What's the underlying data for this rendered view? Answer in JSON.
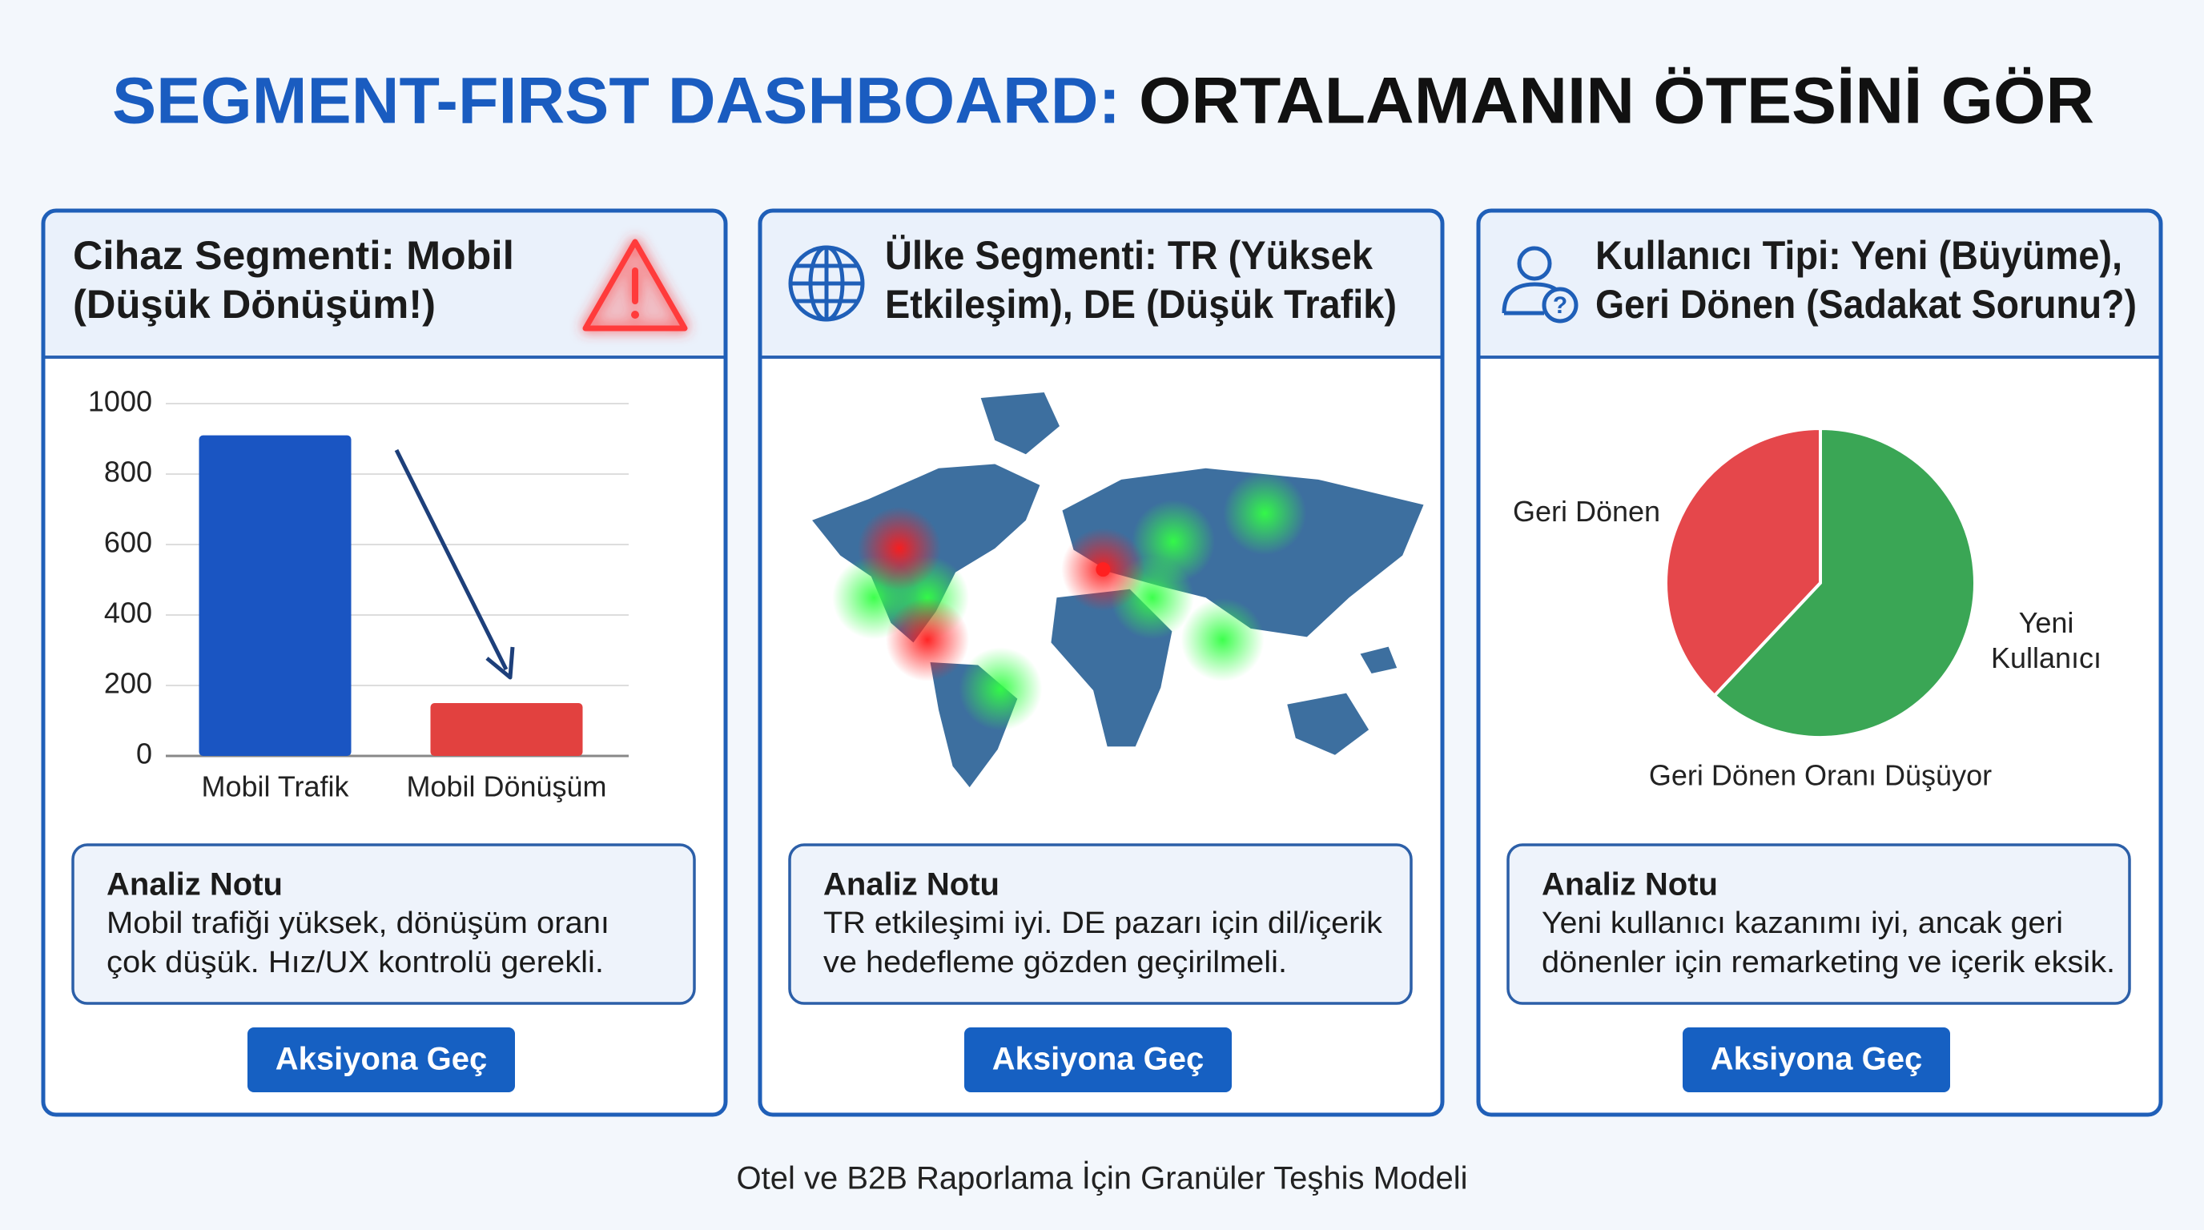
{
  "title": {
    "lead": "SEGMENT-FIRST DASHBOARD:",
    "rest": "ORTALAMANIN ÖTESİNİ GÖR"
  },
  "panels": [
    {
      "title_lines": [
        "Cihaz Segmenti: Mobil",
        "(Düşük Dönüşüm!)"
      ],
      "note": {
        "heading": "Analiz Notu",
        "lines": [
          "Mobil trafiği yüksek, dönüşüm oranı",
          "çok düşük. Hız/UX kontrolü gerekli."
        ]
      },
      "button": "Aksiyona Geç"
    },
    {
      "title_lines": [
        "Ülke Segmenti: TR (Yüksek",
        "Etkileşim), DE (Düşük Trafik)"
      ],
      "note": {
        "heading": "Analiz Notu",
        "lines": [
          "TR etkileşimi iyi. DE pazarı için dil/içerik",
          "ve hedefleme gözden geçirilmeli."
        ]
      },
      "button": "Aksiyona Geç"
    },
    {
      "title_lines": [
        "Kullanıcı Tipi: Yeni (Büyüme),",
        "Geri Dönen (Sadakat Sorunu?)"
      ],
      "note": {
        "heading": "Analiz Notu",
        "lines": [
          "Yeni kullanıcı kazanımı iyi, ancak geri",
          "dönenler için remarketing ve içerik eksik."
        ]
      },
      "button": "Aksiyona Geç"
    }
  ],
  "chart_data": [
    {
      "type": "bar",
      "categories": [
        "Mobil Trafik",
        "Mobil Dönüşüm"
      ],
      "values": [
        910,
        150
      ],
      "colors": [
        "#1a55c2",
        "#e2413f"
      ],
      "ylim": [
        0,
        1000
      ],
      "yticks": [
        0,
        200,
        400,
        600,
        800,
        1000
      ],
      "grid": true
    },
    {
      "type": "pie",
      "categories": [
        "Geri Dönen",
        "Yeni Kullanıcı"
      ],
      "values": [
        38,
        62
      ],
      "colors": [
        "#e5474b",
        "#3aa655"
      ],
      "annotation": "Geri Dönen Oranı Düşüyor"
    }
  ],
  "footer": "Otel ve B2B Raporlama İçin Granüler Teşhis Modeli"
}
